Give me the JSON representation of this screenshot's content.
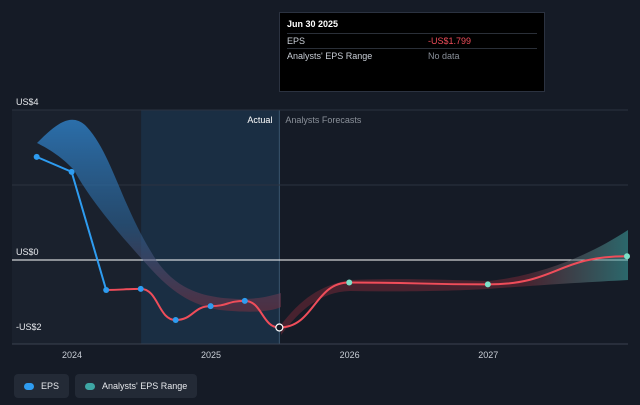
{
  "tooltip": {
    "date": "Jun 30 2025",
    "rows": [
      {
        "label": "EPS",
        "value": "-US$1.799"
      },
      {
        "label": "Analysts' EPS Range",
        "value": "No data"
      }
    ]
  },
  "legend": {
    "items": [
      {
        "label": "EPS",
        "color": "#2e9cf0"
      },
      {
        "label": "Analysts' EPS Range",
        "color": "#3ea6a4"
      }
    ]
  },
  "chart_data": {
    "type": "line",
    "y_tick_labels": [
      "US$4",
      "US$0",
      "-US$2"
    ],
    "y_ticks": [
      4,
      0,
      -2
    ],
    "ylim": [
      -2,
      4
    ],
    "x_tick_labels": [
      "2024",
      "2025",
      "2026",
      "2027"
    ],
    "region_labels": {
      "actual": "Actual",
      "forecast": "Analysts Forecasts"
    },
    "colors": {
      "actual_line": "#2e9cf0",
      "forecast_line": "#ef4d5a",
      "range_past": "#2e7cc0",
      "range_future": "#3ea6a4",
      "grid": "#2c3340",
      "zero_line": "#ffffff"
    },
    "series": [
      {
        "name": "EPS",
        "points": [
          {
            "date": "2023-09-30",
            "value": 2.75
          },
          {
            "date": "2023-12-31",
            "value": 2.35
          },
          {
            "date": "2024-03-31",
            "value": -0.8
          },
          {
            "date": "2024-06-30",
            "value": -0.77
          },
          {
            "date": "2024-09-30",
            "value": -1.6
          },
          {
            "date": "2024-12-31",
            "value": -1.23
          },
          {
            "date": "2025-03-31",
            "value": -1.09
          },
          {
            "date": "2025-06-30",
            "value": -1.8
          }
        ]
      },
      {
        "name": "Forecast EPS",
        "points": [
          {
            "date": "2025-06-30",
            "value": -1.8
          },
          {
            "date": "2025-12-31",
            "value": -0.6
          },
          {
            "date": "2026-12-31",
            "value": -0.65
          },
          {
            "date": "2027-12-31",
            "value": 0.1
          }
        ]
      }
    ]
  }
}
